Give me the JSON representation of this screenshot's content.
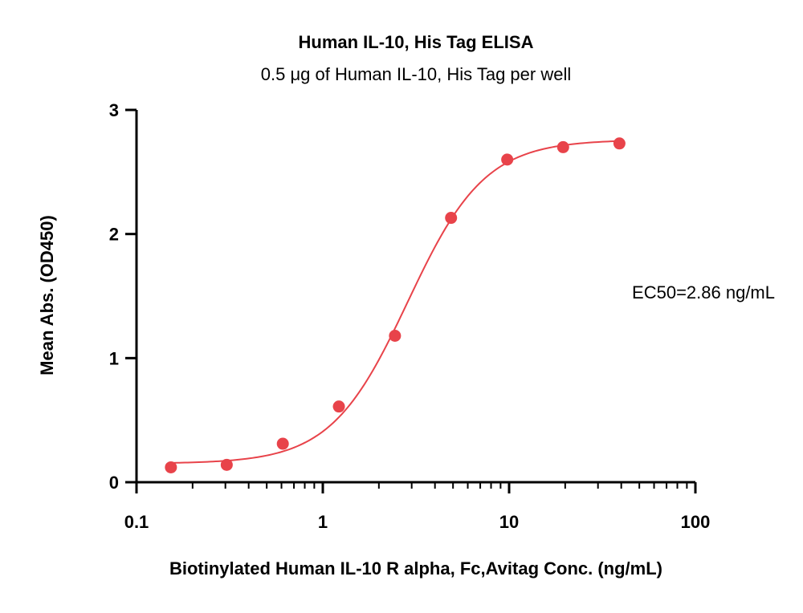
{
  "chart_data": {
    "type": "scatter",
    "title": "Human IL-10, His Tag ELISA",
    "subtitle": "0.5 μg of Human IL-10, His Tag per well",
    "xlabel": "Biotinylated Human IL-10 R alpha, Fc,Avitag Conc. (ng/mL)",
    "ylabel": "Mean Abs. (OD450)",
    "x_scale": "log",
    "xlim": [
      0.1,
      100
    ],
    "ylim": [
      0,
      3
    ],
    "x_ticks": [
      "0.1",
      "1",
      "10",
      "100"
    ],
    "y_ticks": [
      "0",
      "1",
      "2",
      "3"
    ],
    "grid": false,
    "annotation": "EC50=2.86 ng/mL",
    "colors": {
      "series": "#e8434a",
      "axis": "#000000"
    },
    "series": [
      {
        "x": [
          0.153,
          0.305,
          0.61,
          1.22,
          2.44,
          4.88,
          9.77,
          19.5,
          39.1
        ],
        "y": [
          0.12,
          0.14,
          0.31,
          0.61,
          1.18,
          2.13,
          2.6,
          2.7,
          2.73
        ]
      }
    ],
    "fit": {
      "bottom": 0.15,
      "top": 2.76,
      "ec50": 2.86,
      "hill": 2.1
    }
  }
}
